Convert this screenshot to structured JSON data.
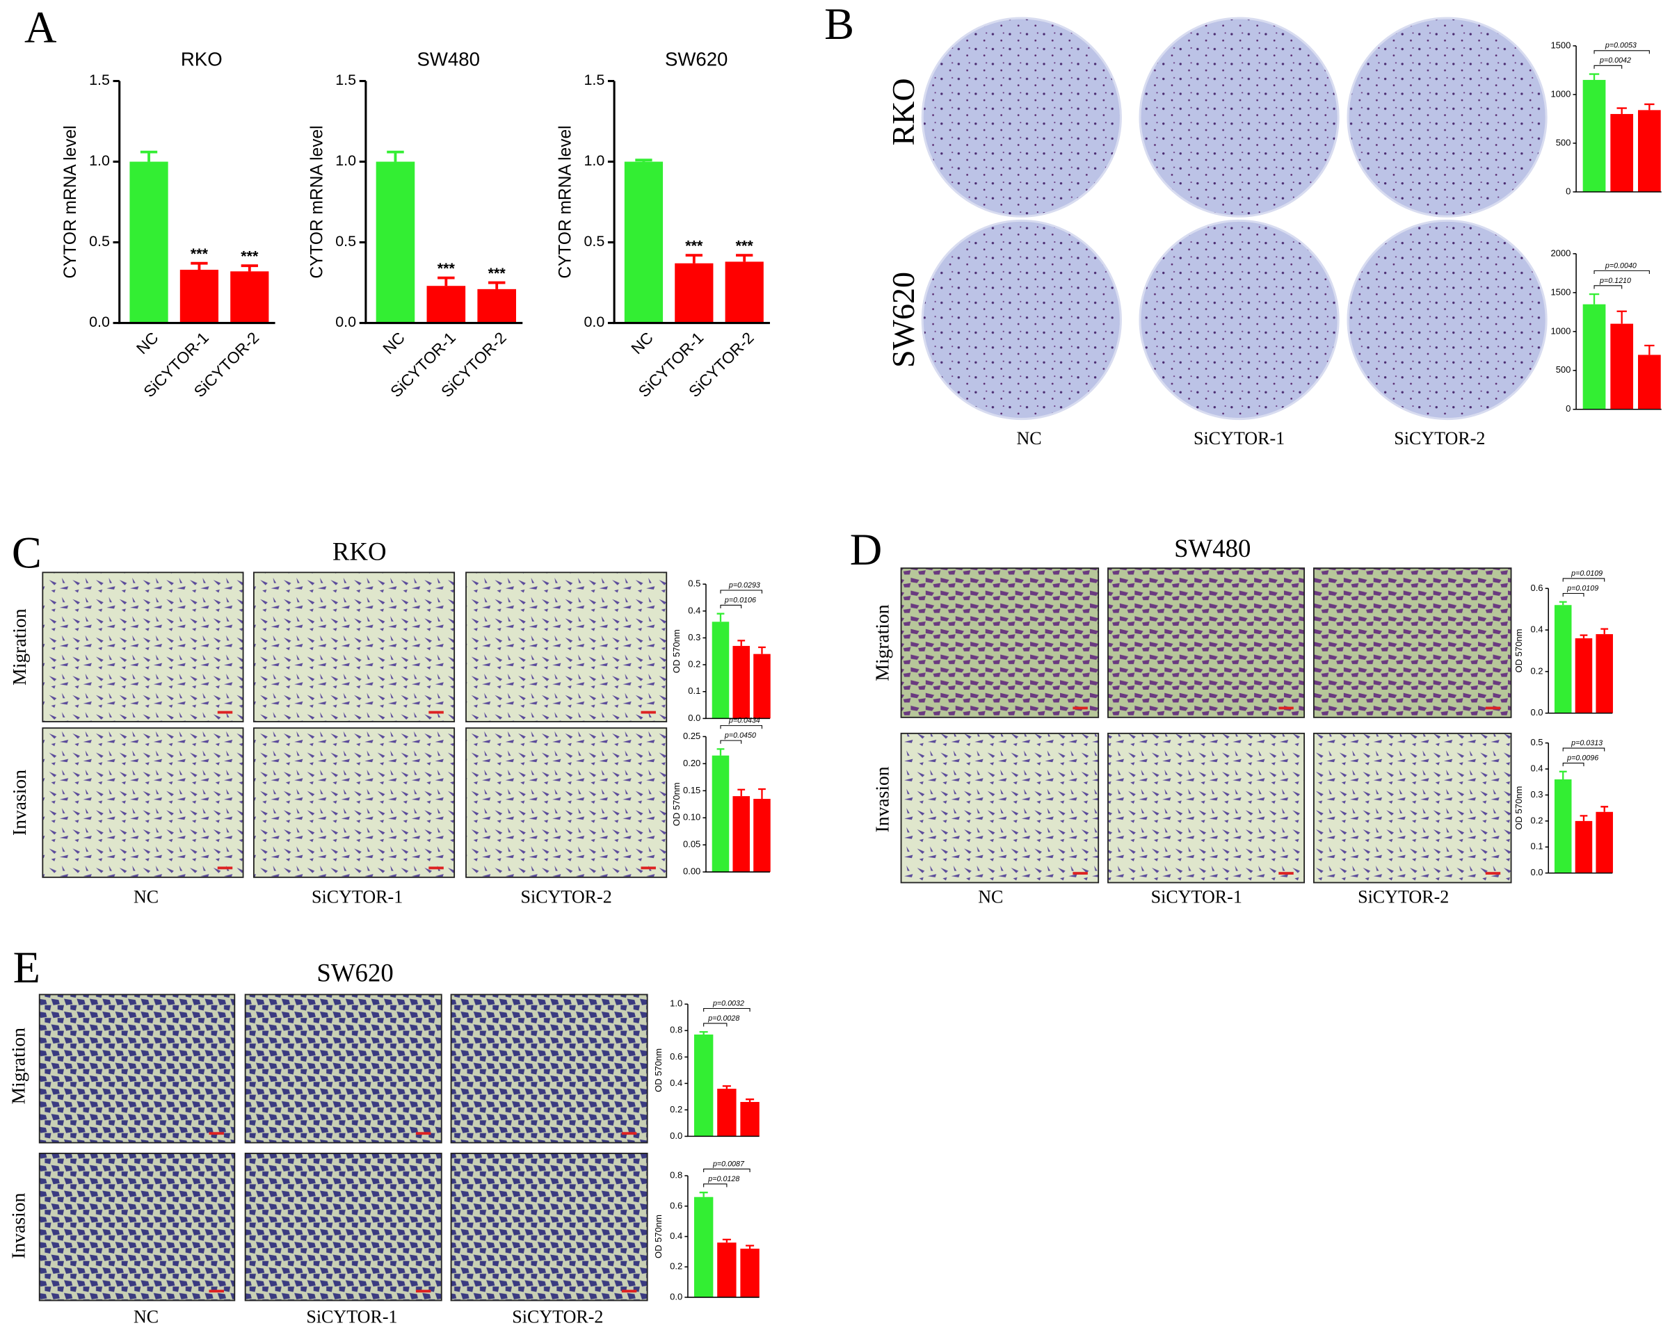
{
  "chart_data": [
    {
      "type": "bar",
      "title": "RKO",
      "y_label": "CYTOR mRNA level",
      "categories": [
        "NC",
        "SiCYTOR-1",
        "SiCYTOR-2"
      ],
      "values": [
        1.0,
        0.33,
        0.32
      ],
      "errors": [
        0.06,
        0.04,
        0.035
      ],
      "bar_labels": [
        null,
        "***",
        "***"
      ],
      "colors": [
        "#33ee33",
        "#ff0000",
        "#ff0000"
      ],
      "ylim": [
        0,
        1.5
      ],
      "yticks": [
        {
          "value": 0,
          "label": "0.0"
        },
        0.5,
        {
          "value": 1,
          "label": "1.0"
        },
        1.5
      ]
    },
    {
      "type": "bar",
      "title": "SW480",
      "y_label": "CYTOR mRNA level",
      "categories": [
        "NC",
        "SiCYTOR-1",
        "SiCYTOR-2"
      ],
      "values": [
        1.0,
        0.23,
        0.21
      ],
      "errors": [
        0.06,
        0.05,
        0.04
      ],
      "bar_labels": [
        null,
        "***",
        "***"
      ],
      "colors": [
        "#33ee33",
        "#ff0000",
        "#ff0000"
      ],
      "ylim": [
        0,
        1.5
      ],
      "yticks": [
        {
          "value": 0,
          "label": "0.0"
        },
        0.5,
        {
          "value": 1,
          "label": "1.0"
        },
        1.5
      ]
    },
    {
      "type": "bar",
      "title": "SW620",
      "y_label": "CYTOR mRNA level",
      "categories": [
        "NC",
        "SiCYTOR-1",
        "SiCYTOR-2"
      ],
      "values": [
        1.0,
        0.37,
        0.38
      ],
      "errors": [
        0.01,
        0.05,
        0.04
      ],
      "bar_labels": [
        null,
        "***",
        "***"
      ],
      "colors": [
        "#33ee33",
        "#ff0000",
        "#ff0000"
      ],
      "ylim": [
        0,
        1.5
      ],
      "yticks": [
        {
          "value": 0,
          "label": "0.0"
        },
        0.5,
        {
          "value": 1,
          "label": "1.0"
        },
        1.5
      ]
    },
    {
      "type": "bar",
      "values": [
        1150,
        800,
        840
      ],
      "errors": [
        60,
        60,
        60
      ],
      "annotations": [
        "p=0.0042",
        "p=0.0053"
      ],
      "colors": [
        "#33ee33",
        "#ff0000",
        "#ff0000"
      ],
      "ylim": [
        0,
        1500
      ],
      "yticks": [
        0,
        500,
        1000,
        1500
      ]
    },
    {
      "type": "bar",
      "values": [
        1350,
        1100,
        700
      ],
      "errors": [
        130,
        160,
        120
      ],
      "annotations": [
        "p=0.1210",
        "p=0.0040"
      ],
      "colors": [
        "#33ee33",
        "#ff0000",
        "#ff0000"
      ],
      "ylim": [
        0,
        2000
      ],
      "yticks": [
        0,
        500,
        1000,
        1500,
        2000
      ]
    },
    {
      "type": "bar",
      "y_label": "OD 570nm",
      "values": [
        0.36,
        0.27,
        0.24
      ],
      "errors": [
        0.03,
        0.02,
        0.025
      ],
      "annotations": [
        "p=0.0106",
        "p=0.0293"
      ],
      "colors": [
        "#33ee33",
        "#ff0000",
        "#ff0000"
      ],
      "ylim": [
        0,
        0.5
      ],
      "yticks": [
        {
          "value": 0,
          "label": "0.0"
        },
        0.1,
        0.2,
        0.3,
        0.4,
        0.5
      ]
    },
    {
      "type": "bar",
      "y_label": "OD 570nm",
      "values": [
        0.215,
        0.14,
        0.135
      ],
      "errors": [
        0.012,
        0.012,
        0.018
      ],
      "annotations": [
        "p=0.0450",
        "p=0.0434"
      ],
      "colors": [
        "#33ee33",
        "#ff0000",
        "#ff0000"
      ],
      "ylim": [
        0,
        0.25
      ],
      "yticks": [
        {
          "value": 0,
          "label": "0.00"
        },
        0.05,
        {
          "value": 0.1,
          "label": "0.10"
        },
        0.15,
        {
          "value": 0.2,
          "label": "0.20"
        },
        0.25
      ]
    },
    {
      "type": "bar",
      "y_label": "OD 570nm",
      "values": [
        0.52,
        0.36,
        0.38
      ],
      "errors": [
        0.015,
        0.015,
        0.025
      ],
      "annotations": [
        "p=0.0109",
        "p=0.0109"
      ],
      "colors": [
        "#33ee33",
        "#ff0000",
        "#ff0000"
      ],
      "ylim": [
        0,
        0.6
      ],
      "yticks": [
        {
          "value": 0,
          "label": "0.0"
        },
        0.2,
        0.4,
        0.6
      ]
    },
    {
      "type": "bar",
      "y_label": "OD 570nm",
      "values": [
        0.36,
        0.2,
        0.235
      ],
      "errors": [
        0.03,
        0.02,
        0.02
      ],
      "annotations": [
        "p=0.0096",
        "p=0.0313"
      ],
      "colors": [
        "#33ee33",
        "#ff0000",
        "#ff0000"
      ],
      "ylim": [
        0,
        0.5
      ],
      "yticks": [
        {
          "value": 0,
          "label": "0.0"
        },
        0.1,
        0.2,
        0.3,
        0.4,
        0.5
      ]
    },
    {
      "type": "bar",
      "y_label": "OD 570nm",
      "values": [
        0.77,
        0.36,
        0.26
      ],
      "errors": [
        0.02,
        0.02,
        0.02
      ],
      "annotations": [
        "p=0.0028",
        "p=0.0032"
      ],
      "colors": [
        "#33ee33",
        "#ff0000",
        "#ff0000"
      ],
      "ylim": [
        0,
        1.0
      ],
      "yticks": [
        {
          "value": 0,
          "label": "0.0"
        },
        0.2,
        0.4,
        0.6,
        0.8,
        {
          "value": 1,
          "label": "1.0"
        }
      ]
    },
    {
      "type": "bar",
      "y_label": "OD 570nm",
      "values": [
        0.66,
        0.36,
        0.32
      ],
      "errors": [
        0.03,
        0.02,
        0.02
      ],
      "annotations": [
        "p=0.0128",
        "p=0.0087"
      ],
      "colors": [
        "#33ee33",
        "#ff0000",
        "#ff0000"
      ],
      "ylim": [
        0,
        0.8
      ],
      "yticks": [
        {
          "value": 0,
          "label": "0.0"
        },
        0.2,
        0.4,
        0.6,
        0.8
      ]
    }
  ],
  "figure": {
    "panel_letters": [
      "A",
      "B",
      "C",
      "D",
      "E"
    ],
    "panels": [
      {
        "row_labels": [
          "RKO",
          "SW620"
        ],
        "column_labels": [
          "NC",
          "SiCYTOR-1",
          "SiCYTOR-2"
        ]
      },
      {
        "title": "RKO",
        "row_labels": [
          "Migration",
          "Invasion"
        ],
        "column_labels": [
          "NC",
          "SiCYTOR-1",
          "SiCYTOR-2"
        ]
      },
      {
        "title": "SW480",
        "row_labels": [
          "Migration",
          "Invasion"
        ],
        "column_labels": [
          "NC",
          "SiCYTOR-1",
          "SiCYTOR-2"
        ]
      },
      {
        "title": "SW620",
        "row_labels": [
          "Migration",
          "Invasion"
        ],
        "column_labels": [
          "NC",
          "SiCYTOR-1",
          "SiCYTOR-2"
        ]
      }
    ]
  }
}
